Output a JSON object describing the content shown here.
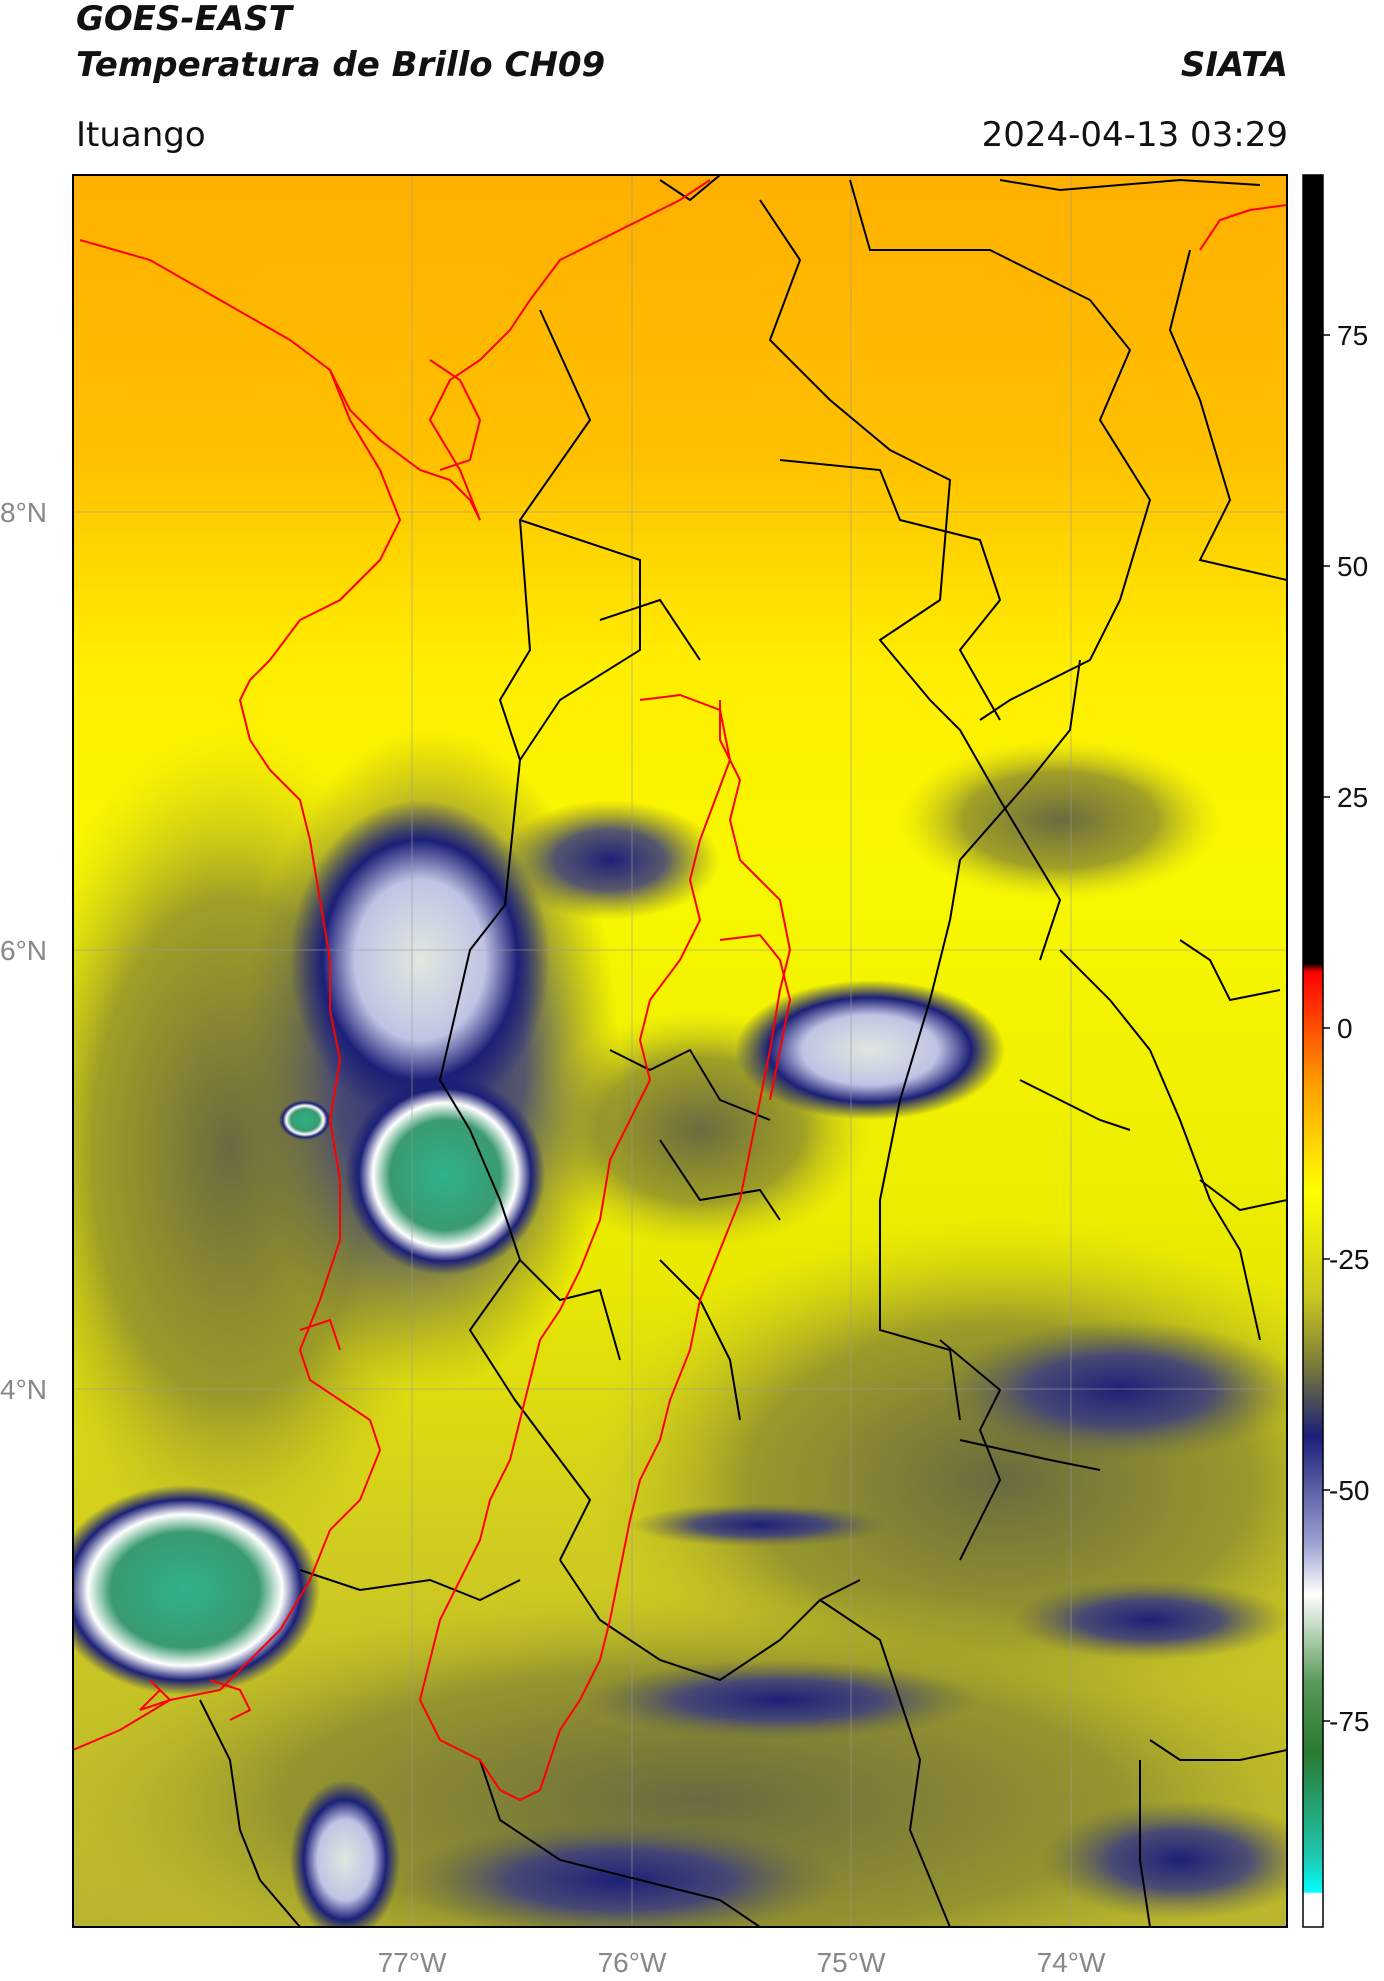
{
  "header": {
    "satellite": "GOES-EAST",
    "product": "Temperatura de Brillo CH09",
    "org": "SIATA",
    "region": "Ituango",
    "datetime": "2024-04-13 03:29"
  },
  "axes": {
    "x_ticks": [
      "77°W",
      "76°W",
      "75°W",
      "74°W"
    ],
    "y_ticks": [
      "8°N",
      "6°N",
      "4°N"
    ]
  },
  "colorbar": {
    "ticks": [
      "75",
      "50",
      "25",
      "0",
      "-25",
      "-50",
      "-75"
    ],
    "stops": [
      {
        "color": "#000000"
      },
      {
        "color": "#ff0000"
      },
      {
        "color": "#ffa000"
      },
      {
        "color": "#ffff00"
      },
      {
        "color": "#7a7a3a"
      },
      {
        "color": "#1a1f7a"
      },
      {
        "color": "#ffffff"
      },
      {
        "color": "#3a8a3a"
      },
      {
        "color": "#00ffff"
      }
    ]
  },
  "colors": {
    "warm_background": "#f6f000",
    "north_background": "#ffb000",
    "cold_cloud": "#1b2077",
    "coldest_top": "#2fb28a",
    "political_boundaries": "#000000",
    "study_basin": "#ff0000"
  }
}
